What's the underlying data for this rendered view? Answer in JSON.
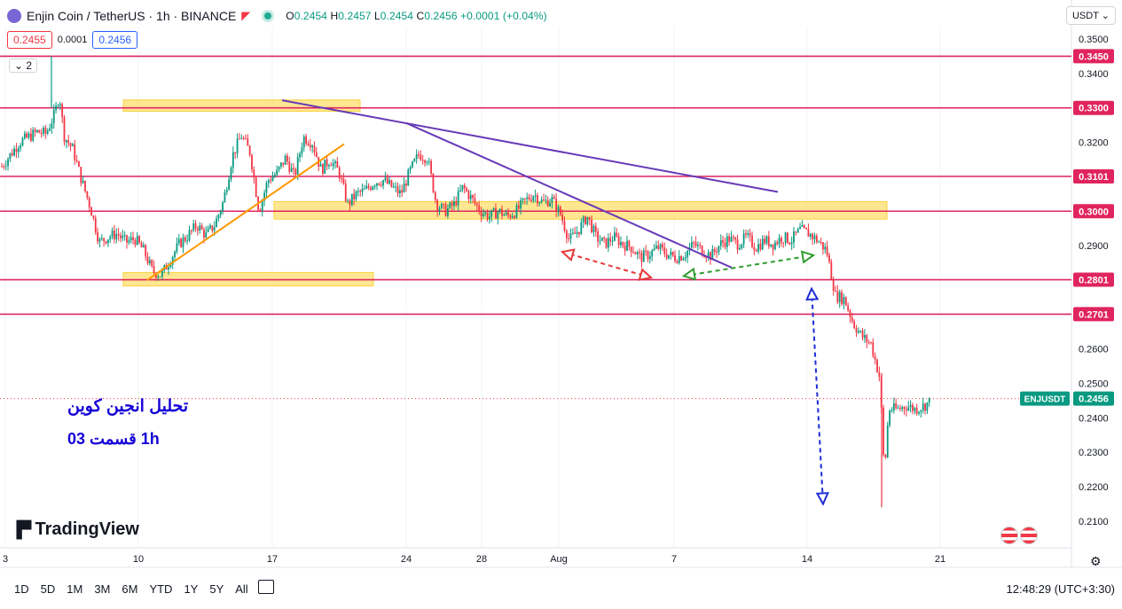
{
  "header": {
    "title": "Enjin Coin / TetherUS · 1h · BINANCE",
    "ohlc": [
      {
        "k": "O",
        "v": "0.2454"
      },
      {
        "k": "H",
        "v": "0.2457"
      },
      {
        "k": "L",
        "v": "0.2454"
      },
      {
        "k": "C",
        "v": "0.2456"
      }
    ],
    "change": "+0.0001 (+0.04%)",
    "sell_price": "0.2455",
    "spread": "0.0001",
    "buy_price": "0.2456",
    "indicators_count": "2",
    "currency": "USDT"
  },
  "annotation": {
    "line1": "تحلیل انجین کوین",
    "line2": "1h    قسمت 03"
  },
  "brand": "TradingView",
  "footer": {
    "ranges": [
      "1D",
      "5D",
      "1M",
      "3M",
      "6M",
      "YTD",
      "1Y",
      "5Y",
      "All"
    ],
    "clock": "12:48:29 (UTC+3:30)"
  },
  "chart_data": {
    "type": "candlestick",
    "symbol": "ENJUSDT",
    "last_price": 0.2456,
    "last_label": "0.2456",
    "x_ticks": [
      "3",
      "10",
      "17",
      "24",
      "28",
      "Aug",
      "7",
      "14",
      "21"
    ],
    "y_ticks": [
      "0.3500",
      "0.3400",
      "0.3300",
      "0.3200",
      "0.3100",
      "0.3000",
      "0.2900",
      "0.2800",
      "0.2700",
      "0.2600",
      "0.2500",
      "0.2400",
      "0.2300",
      "0.2200",
      "0.2100"
    ],
    "ylim": [
      0.2062,
      0.3525
    ],
    "level_lines": [
      {
        "value": 0.345,
        "label": "0.3450"
      },
      {
        "value": 0.33,
        "label": "0.3300"
      },
      {
        "value": 0.3101,
        "label": "0.3101"
      },
      {
        "value": 0.3,
        "label": "0.3000"
      },
      {
        "value": 0.2801,
        "label": "0.2801"
      },
      {
        "value": 0.2701,
        "label": "0.2701"
      }
    ],
    "price_path": [
      [
        0,
        0.313
      ],
      [
        2,
        0.32
      ],
      [
        4,
        0.323
      ],
      [
        5,
        0.3225
      ],
      [
        6,
        0.3285
      ],
      [
        6.5,
        0.334
      ],
      [
        7,
        0.322
      ],
      [
        8,
        0.318
      ],
      [
        9,
        0.309
      ],
      [
        10,
        0.301
      ],
      [
        11,
        0.291
      ],
      [
        12,
        0.2925
      ],
      [
        13,
        0.2935
      ],
      [
        14,
        0.291
      ],
      [
        15,
        0.292
      ],
      [
        16,
        0.2885
      ],
      [
        17,
        0.2825
      ],
      [
        18,
        0.2815
      ],
      [
        19,
        0.286
      ],
      [
        20,
        0.2905
      ],
      [
        21,
        0.293
      ],
      [
        22,
        0.296
      ],
      [
        23,
        0.293
      ],
      [
        24,
        0.296
      ],
      [
        25,
        0.303
      ],
      [
        26,
        0.316
      ],
      [
        27,
        0.322
      ],
      [
        28,
        0.317
      ],
      [
        29,
        0.3
      ],
      [
        30,
        0.309
      ],
      [
        31,
        0.311
      ],
      [
        32,
        0.3155
      ],
      [
        33,
        0.31
      ],
      [
        34,
        0.3215
      ],
      [
        35,
        0.32
      ],
      [
        36,
        0.312
      ],
      [
        37,
        0.315
      ],
      [
        38,
        0.3115
      ],
      [
        39,
        0.302
      ],
      [
        40,
        0.305
      ],
      [
        41,
        0.306
      ],
      [
        42,
        0.3085
      ],
      [
        43,
        0.309
      ],
      [
        44,
        0.307
      ],
      [
        45,
        0.305
      ],
      [
        46,
        0.3115
      ],
      [
        47,
        0.3165
      ],
      [
        48,
        0.3155
      ],
      [
        49,
        0.302
      ],
      [
        50,
        0.3
      ],
      [
        51,
        0.302
      ],
      [
        52,
        0.307
      ],
      [
        53,
        0.3035
      ],
      [
        54,
        0.3
      ],
      [
        55,
        0.2985
      ],
      [
        56,
        0.3
      ],
      [
        57,
        0.2985
      ],
      [
        58,
        0.3
      ],
      [
        59,
        0.303
      ],
      [
        60,
        0.305
      ],
      [
        61,
        0.3025
      ],
      [
        62,
        0.3035
      ],
      [
        63,
        0.299
      ],
      [
        64,
        0.2915
      ],
      [
        65,
        0.2945
      ],
      [
        66,
        0.2985
      ],
      [
        67,
        0.2925
      ],
      [
        68,
        0.2905
      ],
      [
        69,
        0.2925
      ],
      [
        70,
        0.2905
      ],
      [
        71,
        0.2895
      ],
      [
        72,
        0.2865
      ],
      [
        73,
        0.2875
      ],
      [
        74,
        0.2895
      ],
      [
        75,
        0.2875
      ],
      [
        76,
        0.2865
      ],
      [
        77,
        0.2875
      ],
      [
        78,
        0.2905
      ],
      [
        79,
        0.2885
      ],
      [
        80,
        0.287
      ],
      [
        81,
        0.2905
      ],
      [
        82,
        0.292
      ],
      [
        83,
        0.2905
      ],
      [
        84,
        0.2925
      ],
      [
        85,
        0.2895
      ],
      [
        86,
        0.2915
      ],
      [
        87,
        0.2905
      ],
      [
        88,
        0.2925
      ],
      [
        89,
        0.2915
      ],
      [
        90,
        0.2945
      ],
      [
        91,
        0.2935
      ],
      [
        92,
        0.2915
      ],
      [
        93,
        0.2885
      ],
      [
        94,
        0.2755
      ],
      [
        95,
        0.2745
      ],
      [
        96,
        0.2675
      ],
      [
        97,
        0.2635
      ],
      [
        98,
        0.2615
      ],
      [
        99,
        0.2515
      ],
      [
        99.5,
        0.2235
      ],
      [
        100,
        0.2425
      ],
      [
        101,
        0.2425
      ],
      [
        102,
        0.2435
      ],
      [
        103,
        0.2425
      ],
      [
        104,
        0.2435
      ],
      [
        105,
        0.2456
      ]
    ],
    "annotations": [
      "supply zones at 0.3300, 0.3000, 0.2801",
      "descending trendlines from 0.3320 highs",
      "ascending trendline from 0.2801 low",
      "target arrow from 0.2801 to 0.2200"
    ]
  }
}
